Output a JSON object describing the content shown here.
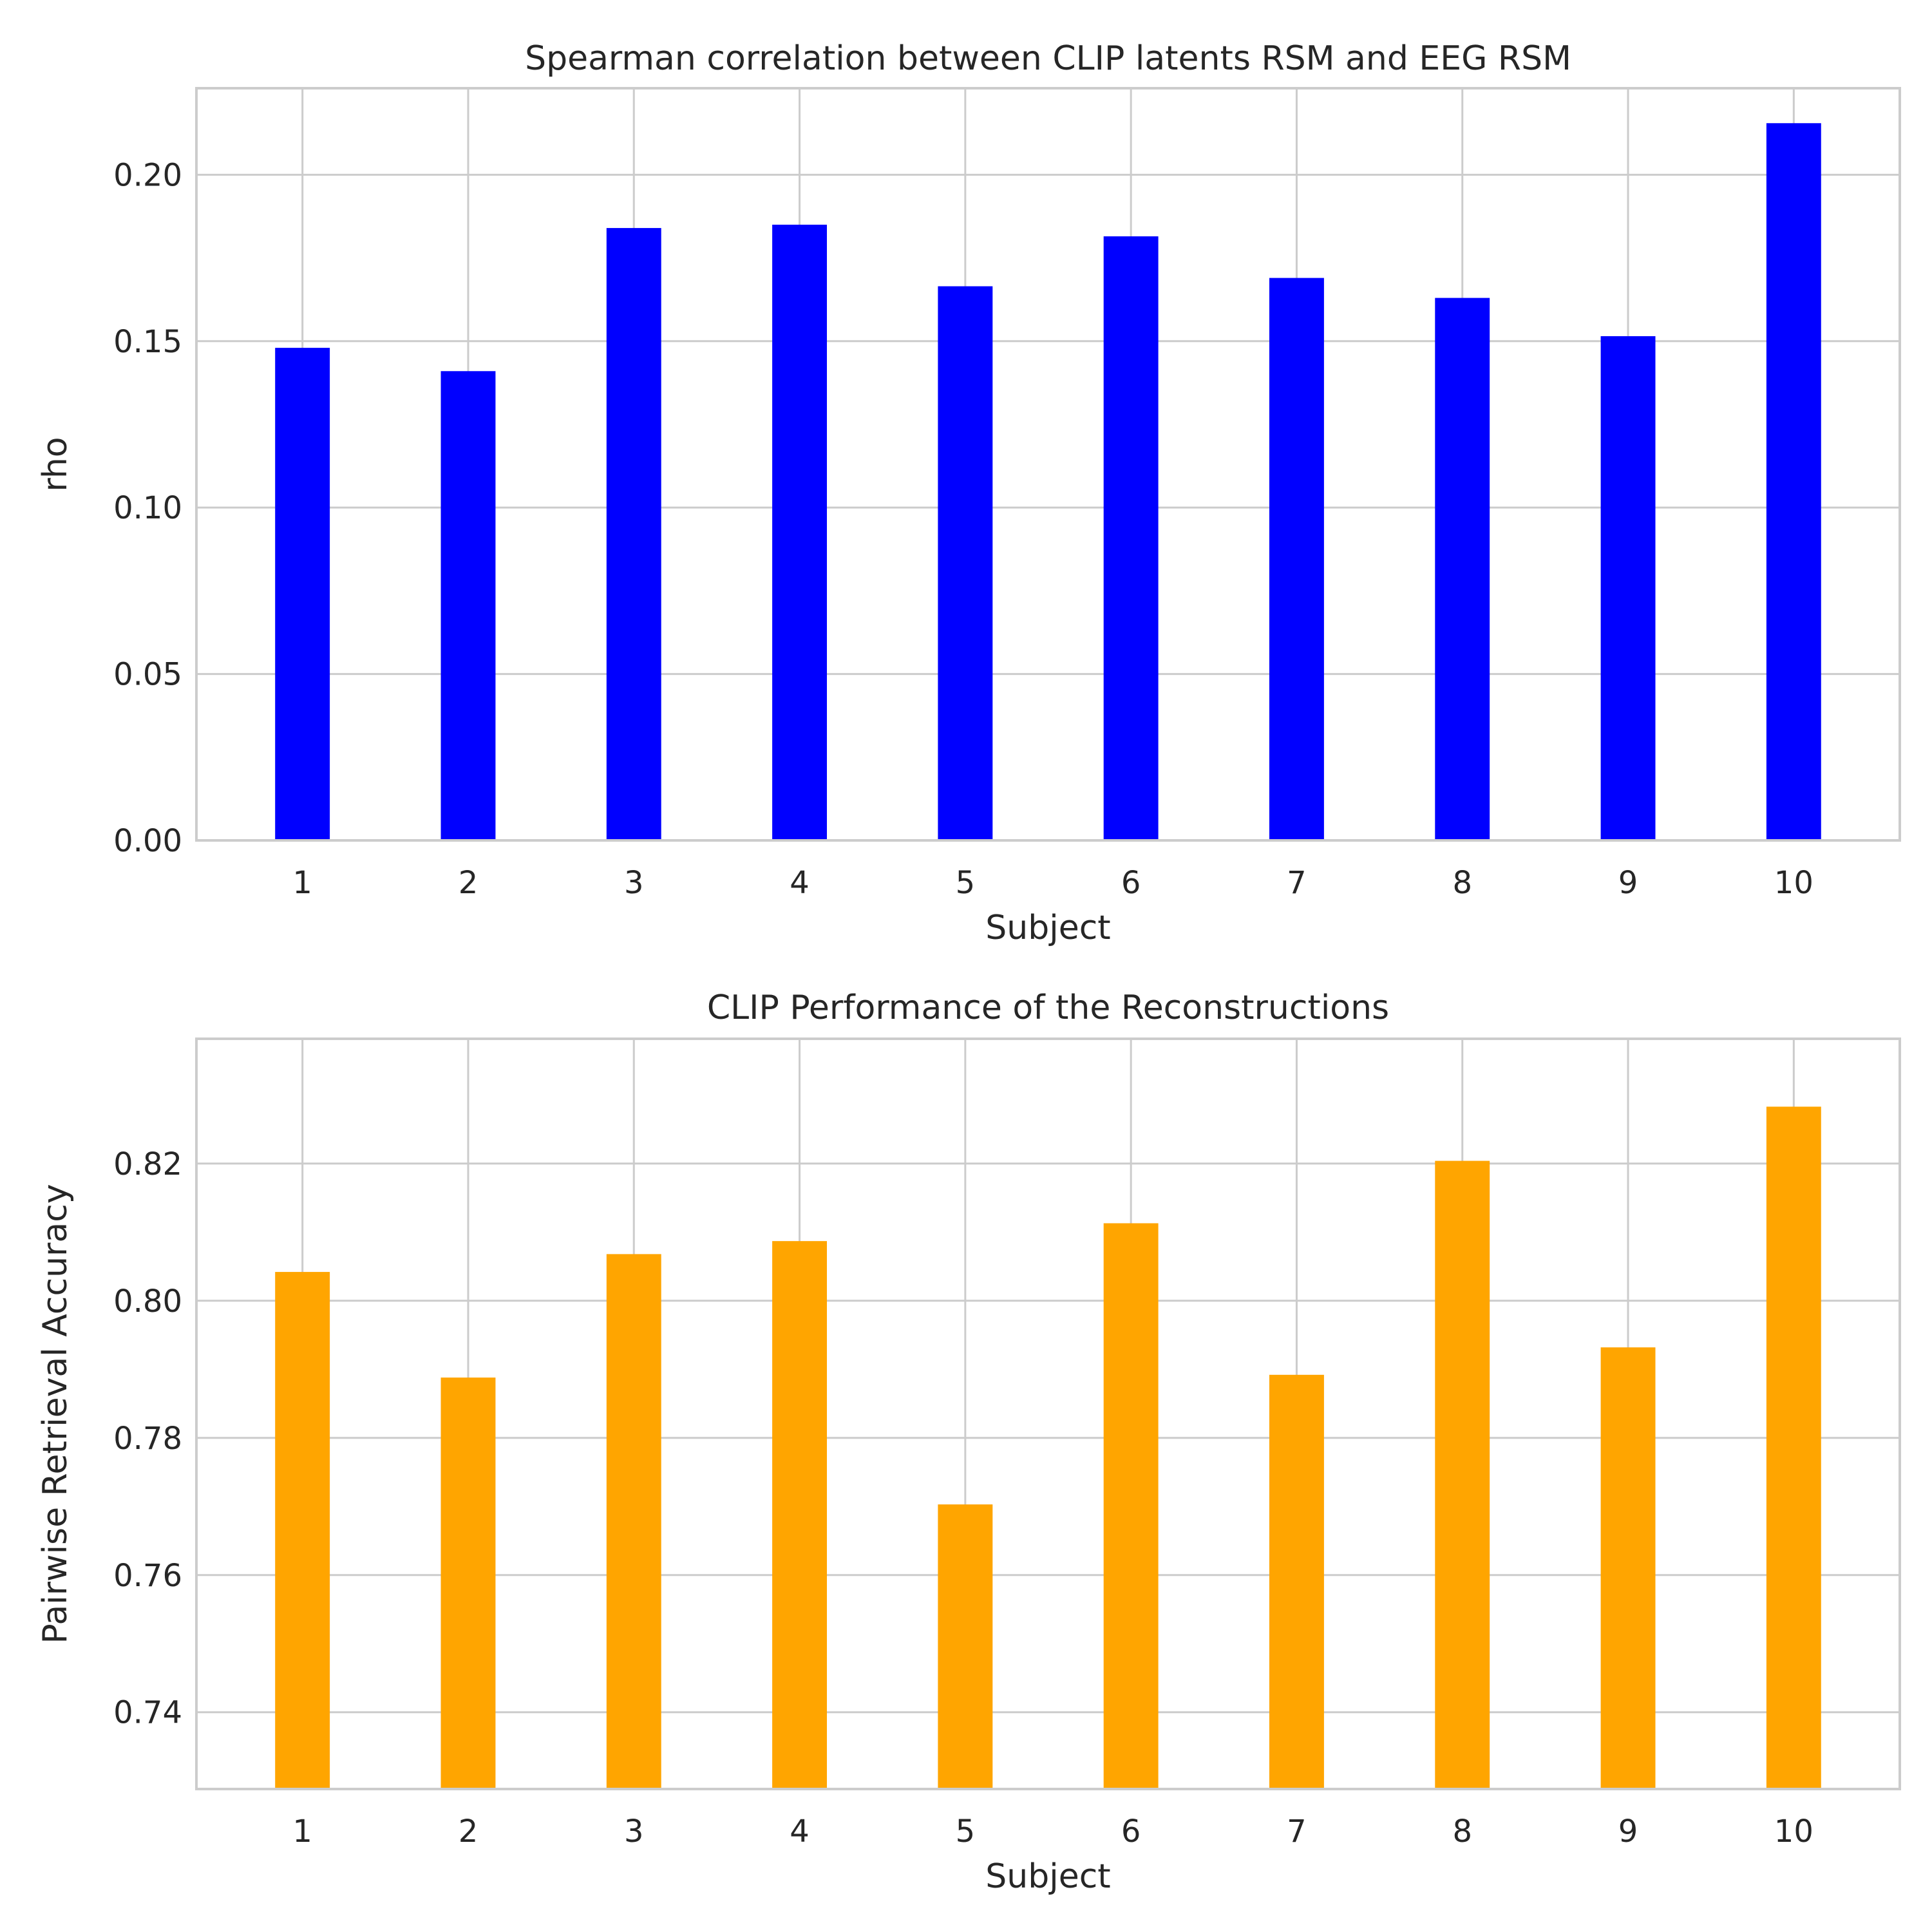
{
  "chart_data": [
    {
      "type": "bar",
      "title": "Spearman correlation between CLIP latents RSM and EEG RSM",
      "xlabel": "Subject",
      "ylabel": "rho",
      "categories": [
        "1",
        "2",
        "3",
        "4",
        "5",
        "6",
        "7",
        "8",
        "9",
        "10"
      ],
      "values": [
        0.148,
        0.141,
        0.184,
        0.185,
        0.1665,
        0.1815,
        0.169,
        0.163,
        0.1515,
        0.2155
      ],
      "ylim": [
        0.0,
        0.226
      ],
      "yticks": [
        0.0,
        0.05,
        0.1,
        0.15,
        0.2
      ],
      "ytick_labels": [
        "0.00",
        "0.05",
        "0.10",
        "0.15",
        "0.20"
      ],
      "color": "#0000ff",
      "grid": true
    },
    {
      "type": "bar",
      "title": "CLIP Performance of the Reconstructions",
      "xlabel": "Subject",
      "ylabel": "Pairwise Retrieval Accuracy",
      "categories": [
        "1",
        "2",
        "3",
        "4",
        "5",
        "6",
        "7",
        "8",
        "9",
        "10"
      ],
      "values": [
        0.8042,
        0.7888,
        0.8068,
        0.8087,
        0.7703,
        0.8113,
        0.7892,
        0.8204,
        0.7932,
        0.8283
      ],
      "ylim": [
        0.7288,
        0.8382
      ],
      "yticks": [
        0.74,
        0.76,
        0.78,
        0.8,
        0.82
      ],
      "ytick_labels": [
        "0.74",
        "0.76",
        "0.78",
        "0.80",
        "0.82"
      ],
      "color": "#ffa500",
      "grid": true
    }
  ]
}
